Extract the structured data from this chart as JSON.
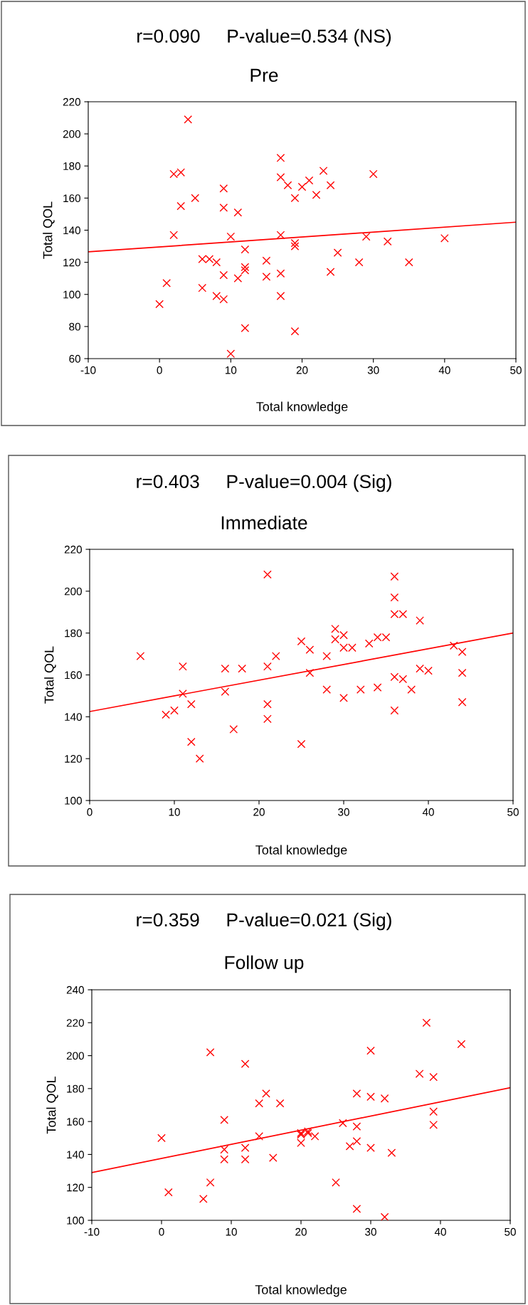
{
  "chart_data": [
    {
      "type": "scatter",
      "title": "r=0.090     P-value=0.534 (NS)",
      "subtitle": "Pre",
      "xlabel": "Total knowledge",
      "ylabel": "Total QOL",
      "xlim": [
        -10,
        50
      ],
      "ylim": [
        60,
        220
      ],
      "xticks": [
        -10,
        0,
        10,
        20,
        30,
        40,
        50
      ],
      "yticks": [
        60,
        80,
        100,
        120,
        140,
        160,
        180,
        200,
        220
      ],
      "series": [
        {
          "type": "scatter",
          "marker": "cross",
          "color": "#ff0000",
          "x": [
            0,
            1,
            2,
            3,
            2,
            3,
            4,
            5,
            6,
            7,
            6,
            8,
            8,
            9,
            9,
            9,
            9,
            10,
            10,
            11,
            11,
            12,
            12,
            12,
            12,
            15,
            15,
            17,
            17,
            17,
            17,
            17,
            18,
            19,
            19,
            19,
            19,
            20,
            21,
            22,
            23,
            24,
            24,
            25,
            28,
            29,
            30,
            32,
            35,
            40
          ],
          "values": [
            94,
            107,
            175,
            176,
            137,
            155,
            209,
            160,
            122,
            122,
            104,
            120,
            99,
            97,
            112,
            166,
            154,
            136,
            63,
            151,
            110,
            128,
            117,
            115,
            79,
            121,
            111,
            185,
            173,
            137,
            113,
            99,
            168,
            160,
            132,
            130,
            77,
            167,
            171,
            162,
            177,
            168,
            114,
            126,
            120,
            136,
            175,
            133,
            120,
            135
          ]
        },
        {
          "type": "line",
          "color": "#ff0000",
          "x": [
            -10,
            50
          ],
          "values": [
            126.5,
            145
          ]
        }
      ]
    },
    {
      "type": "scatter",
      "title": "r=0.403     P-value=0.004 (Sig)",
      "subtitle": "Immediate",
      "xlabel": "Total knowledge",
      "ylabel": "Total QOL",
      "xlim": [
        0,
        50
      ],
      "ylim": [
        100,
        220
      ],
      "xticks": [
        0,
        10,
        20,
        30,
        40,
        50
      ],
      "yticks": [
        100,
        120,
        140,
        160,
        180,
        200,
        220
      ],
      "series": [
        {
          "type": "scatter",
          "marker": "cross",
          "color": "#ff0000",
          "x": [
            6,
            9,
            10,
            11,
            11,
            12,
            12,
            13,
            16,
            16,
            17,
            18,
            21,
            21,
            21,
            21,
            22,
            25,
            25,
            26,
            26,
            28,
            28,
            29,
            29,
            30,
            30,
            30,
            31,
            32,
            33,
            34,
            34,
            35,
            36,
            36,
            36,
            36,
            36,
            37,
            37,
            38,
            39,
            39,
            40,
            43,
            44,
            44,
            44
          ],
          "values": [
            169,
            141,
            143,
            164,
            151,
            146,
            128,
            120,
            163,
            152,
            134,
            163,
            208,
            164,
            146,
            139,
            169,
            176,
            127,
            172,
            161,
            153,
            169,
            182,
            177,
            179,
            173,
            149,
            173,
            153,
            175,
            154,
            178,
            178,
            207,
            197,
            189,
            159,
            143,
            189,
            158,
            153,
            186,
            163,
            162,
            174,
            171,
            161,
            147
          ]
        },
        {
          "type": "line",
          "color": "#ff0000",
          "x": [
            0,
            50
          ],
          "values": [
            142.5,
            180
          ]
        }
      ]
    },
    {
      "type": "scatter",
      "title": "r=0.359     P-value=0.021 (Sig)",
      "subtitle": "Follow up",
      "xlabel": "Total knowledge",
      "ylabel": "Total QOL",
      "xlim": [
        -10,
        50
      ],
      "ylim": [
        100,
        240
      ],
      "xticks": [
        -10,
        0,
        10,
        20,
        30,
        40,
        50
      ],
      "yticks": [
        100,
        120,
        140,
        160,
        180,
        200,
        220,
        240
      ],
      "series": [
        {
          "type": "scatter",
          "marker": "cross",
          "color": "#ff0000",
          "x": [
            0,
            1,
            6,
            7,
            7,
            9,
            9,
            9,
            12,
            12,
            12,
            14,
            14,
            15,
            16,
            17,
            20,
            20,
            20,
            21,
            21,
            22,
            25,
            26,
            27,
            28,
            28,
            28,
            28,
            30,
            30,
            30,
            32,
            32,
            33,
            37,
            38,
            39,
            39,
            39,
            43
          ],
          "values": [
            150,
            117,
            113,
            123,
            202,
            161,
            143,
            137,
            195,
            144,
            137,
            151,
            171,
            177,
            138,
            171,
            153,
            152,
            147,
            153,
            154,
            151,
            123,
            159,
            145,
            177,
            157,
            148,
            107,
            203,
            175,
            144,
            174,
            102,
            141,
            189,
            220,
            187,
            166,
            158,
            207
          ]
        },
        {
          "type": "line",
          "color": "#ff0000",
          "x": [
            -10,
            50
          ],
          "values": [
            129,
            180.5
          ]
        }
      ]
    }
  ]
}
